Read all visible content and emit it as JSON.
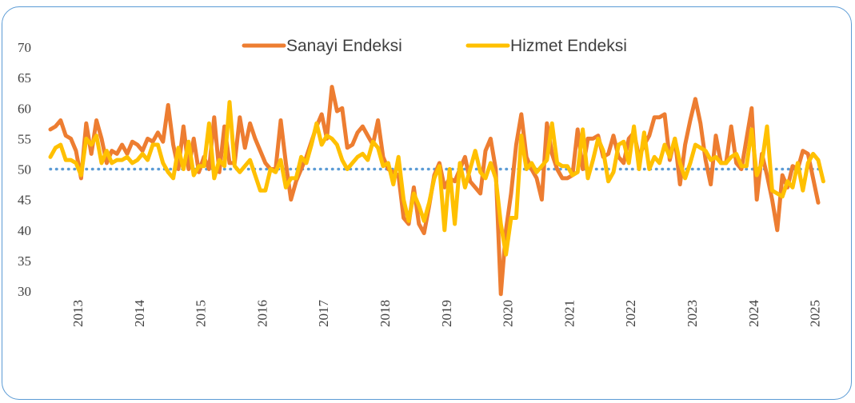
{
  "chart_data": {
    "type": "line",
    "title": "",
    "xlabel": "",
    "ylabel": "",
    "ylim": [
      30,
      70
    ],
    "yticks": [
      30,
      35,
      40,
      45,
      50,
      55,
      60,
      65,
      70
    ],
    "xticks": [
      "2013",
      "2014",
      "2015",
      "2016",
      "2017",
      "2018",
      "2019",
      "2020",
      "2021",
      "2022",
      "2023",
      "2024",
      "2025"
    ],
    "x_start": 2013.0,
    "reference_line": 50,
    "legend_position": "top",
    "series": [
      {
        "name": "Sanayi Endeksi",
        "color": "#ed7d31",
        "values": [
          56.5,
          57.0,
          58.0,
          55.5,
          55.0,
          53.0,
          48.5,
          57.5,
          52.5,
          58.0,
          55.0,
          51.0,
          53.0,
          52.5,
          54.0,
          52.5,
          54.5,
          54.0,
          53.0,
          55.0,
          54.5,
          56.0,
          54.5,
          60.5,
          54.0,
          50.0,
          57.0,
          50.0,
          55.0,
          49.5,
          52.0,
          50.0,
          58.5,
          49.5,
          57.0,
          51.0,
          51.0,
          58.5,
          53.5,
          57.5,
          55.0,
          53.0,
          51.0,
          50.0,
          50.0,
          58.0,
          51.0,
          45.0,
          48.0,
          50.0,
          52.0,
          54.5,
          57.0,
          59.0,
          55.0,
          63.5,
          59.5,
          60.0,
          53.5,
          54.0,
          56.0,
          57.0,
          55.5,
          54.0,
          58.0,
          52.0,
          50.0,
          49.5,
          49.0,
          42.0,
          41.0,
          47.0,
          41.0,
          39.5,
          44.0,
          49.0,
          51.0,
          47.0,
          48.5,
          48.0,
          50.0,
          52.0,
          48.0,
          47.0,
          46.0,
          53.0,
          55.0,
          50.0,
          29.5,
          40.0,
          46.0,
          54.0,
          59.0,
          52.0,
          50.0,
          48.5,
          45.0,
          57.5,
          52.5,
          50.0,
          48.5,
          48.5,
          49.0,
          56.5,
          50.0,
          55.0,
          55.0,
          55.5,
          52.0,
          52.5,
          55.5,
          52.0,
          51.0,
          55.0,
          56.0,
          52.0,
          54.0,
          55.5,
          58.5,
          58.5,
          59.0,
          51.5,
          55.0,
          47.5,
          54.0,
          58.0,
          61.5,
          57.5,
          51.5,
          47.5,
          55.5,
          51.0,
          51.0,
          57.0,
          51.0,
          50.0,
          55.0,
          60.0,
          45.0,
          52.5,
          49.0,
          45.0,
          40.0,
          49.0,
          47.0,
          50.5,
          50.0,
          53.0,
          52.5,
          48.5,
          44.5
        ]
      },
      {
        "name": "Hizmet Endeksi",
        "color": "#ffc000",
        "values": [
          52.0,
          53.5,
          54.0,
          51.5,
          51.5,
          51.0,
          49.0,
          55.0,
          54.0,
          55.5,
          51.0,
          53.0,
          51.0,
          51.5,
          51.5,
          52.0,
          51.0,
          51.5,
          52.5,
          51.5,
          54.0,
          54.0,
          51.0,
          49.5,
          48.5,
          53.5,
          50.0,
          54.5,
          49.0,
          50.5,
          50.5,
          57.5,
          48.5,
          51.5,
          50.5,
          61.0,
          50.5,
          49.5,
          50.5,
          51.5,
          49.0,
          46.5,
          46.5,
          50.0,
          49.5,
          51.5,
          47.0,
          48.5,
          48.5,
          52.0,
          51.0,
          54.0,
          57.5,
          54.0,
          55.5,
          55.0,
          54.0,
          51.5,
          50.0,
          51.0,
          52.0,
          52.5,
          51.5,
          54.5,
          53.5,
          50.5,
          51.0,
          47.5,
          52.0,
          45.0,
          41.5,
          46.0,
          44.0,
          41.5,
          44.5,
          48.5,
          50.5,
          40.0,
          50.0,
          41.0,
          51.0,
          47.0,
          50.0,
          53.0,
          49.5,
          48.5,
          51.0,
          48.5,
          41.0,
          36.0,
          42.0,
          42.0,
          55.5,
          50.0,
          51.0,
          49.5,
          50.5,
          51.5,
          57.5,
          51.0,
          50.5,
          50.5,
          49.0,
          49.5,
          56.5,
          48.5,
          51.5,
          55.0,
          53.0,
          48.0,
          49.5,
          54.0,
          54.5,
          51.0,
          57.0,
          50.0,
          56.0,
          50.0,
          52.0,
          51.0,
          54.0,
          52.0,
          55.0,
          51.0,
          48.5,
          51.0,
          54.0,
          53.5,
          53.0,
          51.5,
          52.0,
          51.0,
          51.0,
          52.0,
          52.5,
          50.5,
          50.5,
          56.5,
          49.0,
          51.0,
          57.0,
          46.5,
          46.0,
          45.5,
          48.0,
          47.0,
          51.0,
          46.5,
          51.0,
          52.5,
          51.5,
          48.0
        ]
      }
    ]
  }
}
